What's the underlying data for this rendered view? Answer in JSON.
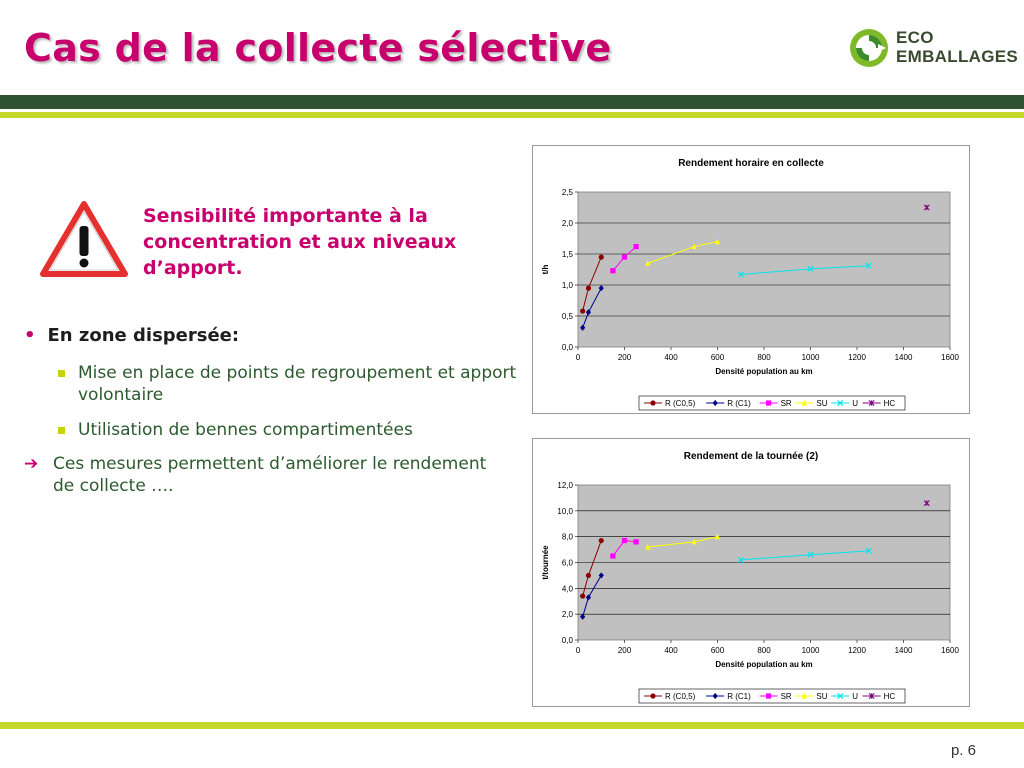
{
  "slide": {
    "title": "Cas de la collecte sélective",
    "logo_line1": "ECO",
    "logo_line2": "EMBALLAGES",
    "callout": "Sensibilité importante à la concentration et aux niveaux d’apport.",
    "bullet_heading": "En zone dispersée:",
    "sub_bullets": [
      "Mise en place de points de regroupement et apport volontaire",
      "Utilisation de bennes compartimentées"
    ],
    "conclusion": "Ces mesures permettent d’améliorer le rendement de collecte ….",
    "page": "p. 6",
    "colors": {
      "title": "#c8006e",
      "band_dark": "#2e5232",
      "band_light": "#c6d82a",
      "plot_bg": "#c0c0c0"
    }
  },
  "chart_data": [
    {
      "type": "line",
      "title": "Rendement horaire en collecte",
      "xlabel": "Densité population au km",
      "ylabel": "t/h",
      "xlim": [
        0,
        1600
      ],
      "ylim": [
        0,
        2.5
      ],
      "xticks": [
        "0",
        "200",
        "400",
        "600",
        "800",
        "1000",
        "1200",
        "1400",
        "1600"
      ],
      "yticks": [
        "0,0",
        "0,5",
        "1,0",
        "1,5",
        "2,0",
        "2,5"
      ],
      "grid": true,
      "legend": "bottom",
      "series": [
        {
          "name": "R (C0,5)",
          "color": "#8b0000",
          "marker": "circle",
          "x": [
            20,
            45,
            100
          ],
          "y": [
            0.58,
            0.95,
            1.45
          ]
        },
        {
          "name": "R (C1)",
          "color": "#00008b",
          "marker": "diamond",
          "x": [
            20,
            45,
            100
          ],
          "y": [
            0.31,
            0.56,
            0.95
          ]
        },
        {
          "name": "SR",
          "color": "#ff00ff",
          "marker": "square",
          "x": [
            150,
            200,
            250
          ],
          "y": [
            1.23,
            1.45,
            1.62
          ]
        },
        {
          "name": "SU",
          "color": "#ffff00",
          "marker": "triangle",
          "x": [
            300,
            500,
            600
          ],
          "y": [
            1.35,
            1.62,
            1.7
          ]
        },
        {
          "name": "U",
          "color": "#00e5ee",
          "marker": "x",
          "x": [
            700,
            1000,
            1250
          ],
          "y": [
            1.17,
            1.26,
            1.31
          ]
        },
        {
          "name": "HC",
          "color": "#800080",
          "marker": "star",
          "x": [
            1500
          ],
          "y": [
            2.25
          ]
        }
      ]
    },
    {
      "type": "line",
      "title": "Rendement de la tournée (2)",
      "xlabel": "Densité population au km",
      "ylabel": "t/tournée",
      "xlim": [
        0,
        1600
      ],
      "ylim": [
        0,
        12
      ],
      "xticks": [
        "0",
        "200",
        "400",
        "600",
        "800",
        "1000",
        "1200",
        "1400",
        "1600"
      ],
      "yticks": [
        "0,0",
        "2,0",
        "4,0",
        "6,0",
        "8,0",
        "10,0",
        "12,0"
      ],
      "grid": true,
      "legend": "bottom",
      "series": [
        {
          "name": "R (C0,5)",
          "color": "#8b0000",
          "marker": "circle",
          "x": [
            20,
            45,
            100
          ],
          "y": [
            3.4,
            5.0,
            7.7
          ]
        },
        {
          "name": "R (C1)",
          "color": "#00008b",
          "marker": "diamond",
          "x": [
            20,
            45,
            100
          ],
          "y": [
            1.8,
            3.3,
            5.0
          ]
        },
        {
          "name": "SR",
          "color": "#ff00ff",
          "marker": "square",
          "x": [
            150,
            200,
            250
          ],
          "y": [
            6.5,
            7.7,
            7.6
          ]
        },
        {
          "name": "SU",
          "color": "#ffff00",
          "marker": "triangle",
          "x": [
            300,
            500,
            600
          ],
          "y": [
            7.2,
            7.6,
            8.0
          ]
        },
        {
          "name": "U",
          "color": "#00e5ee",
          "marker": "x",
          "x": [
            700,
            1000,
            1250
          ],
          "y": [
            6.2,
            6.6,
            6.9
          ]
        },
        {
          "name": "HC",
          "color": "#800080",
          "marker": "star",
          "x": [
            1500
          ],
          "y": [
            10.6
          ]
        }
      ]
    }
  ]
}
